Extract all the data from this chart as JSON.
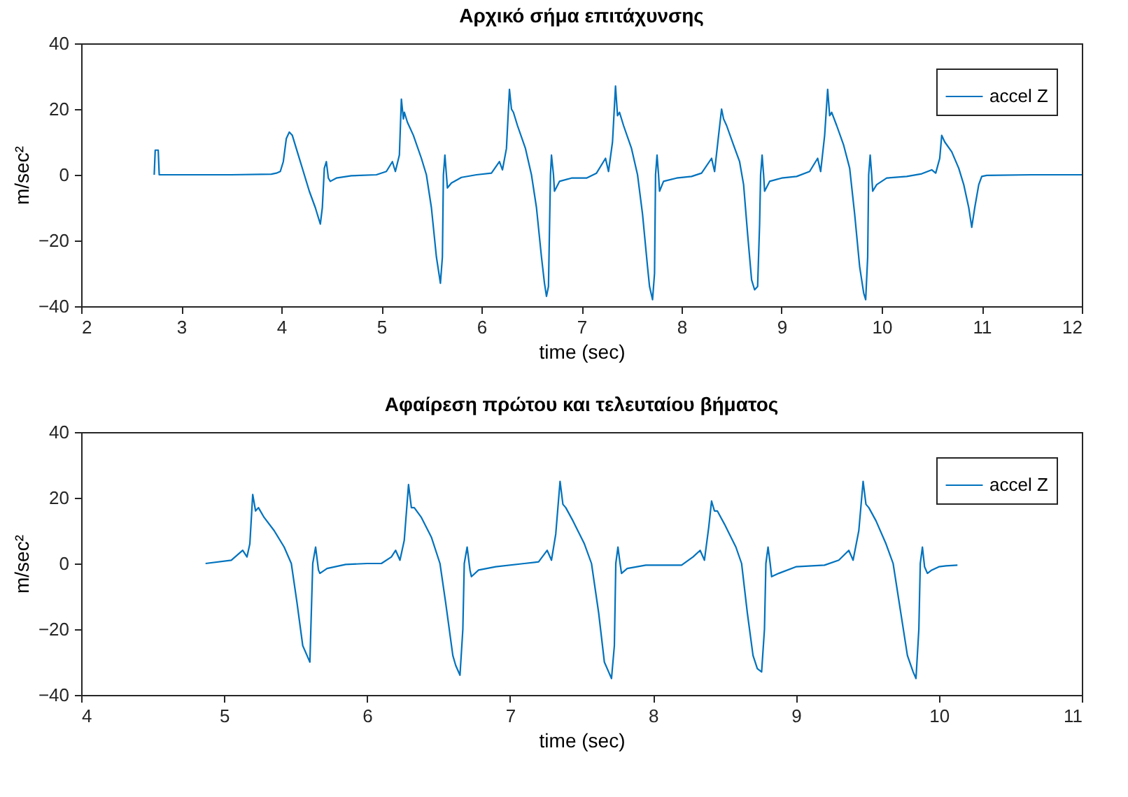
{
  "chart_data": [
    {
      "type": "line",
      "title": "Αρχικό σήμα επιτάχυνσης",
      "xlabel": "time (sec)",
      "ylabel": "m/sec²",
      "xlim": [
        2,
        12
      ],
      "ylim": [
        -40,
        40
      ],
      "xticks": [
        2,
        3,
        4,
        5,
        6,
        7,
        8,
        9,
        10,
        11,
        12
      ],
      "yticks": [
        -40,
        -20,
        0,
        20,
        40
      ],
      "legend": "top right",
      "series": [
        {
          "name": "accel Z",
          "color": "#0072bd",
          "x": [
            2.73,
            2.74,
            2.77,
            2.78,
            3.0,
            3.5,
            3.9,
            3.95,
            3.99,
            4.02,
            4.05,
            4.08,
            4.11,
            4.16,
            4.22,
            4.28,
            4.34,
            4.39,
            4.41,
            4.43,
            4.45,
            4.47,
            4.49,
            4.55,
            4.7,
            4.95,
            5.05,
            5.11,
            5.14,
            5.18,
            5.2,
            5.22,
            5.23,
            5.26,
            5.32,
            5.4,
            5.45,
            5.5,
            5.55,
            5.58,
            5.59,
            5.61,
            5.62,
            5.635,
            5.65,
            5.66,
            5.7,
            5.8,
            5.95,
            6.1,
            6.18,
            6.21,
            6.25,
            6.28,
            6.3,
            6.32,
            6.36,
            6.44,
            6.5,
            6.55,
            6.6,
            6.63,
            6.65,
            6.67,
            6.69,
            6.7,
            6.72,
            6.73,
            6.78,
            6.9,
            7.05,
            7.15,
            7.24,
            7.27,
            7.31,
            7.34,
            7.36,
            7.38,
            7.42,
            7.5,
            7.56,
            7.61,
            7.66,
            7.68,
            7.71,
            7.73,
            7.74,
            7.755,
            7.77,
            7.78,
            7.82,
            7.95,
            8.1,
            8.2,
            8.3,
            8.33,
            8.37,
            8.4,
            8.42,
            8.45,
            8.52,
            8.58,
            8.62,
            8.66,
            8.7,
            8.73,
            8.76,
            8.78,
            8.79,
            8.805,
            8.82,
            8.83,
            8.88,
            9.0,
            9.15,
            9.28,
            9.36,
            9.39,
            9.43,
            9.46,
            9.48,
            9.5,
            9.55,
            9.62,
            9.68,
            9.73,
            9.78,
            9.82,
            9.84,
            9.86,
            9.87,
            9.885,
            9.9,
            9.91,
            9.95,
            10.05,
            10.25,
            10.4,
            10.5,
            10.54,
            10.58,
            10.6,
            10.63,
            10.7,
            10.77,
            10.82,
            10.87,
            10.9,
            10.93,
            10.97,
            11.0,
            11.05,
            11.5,
            12.0
          ],
          "values": [
            0,
            7.5,
            7.5,
            0,
            0,
            0,
            0.2,
            0.5,
            1,
            4,
            11,
            13,
            12,
            7,
            1,
            -5,
            -10,
            -15,
            -10,
            2,
            4,
            -1,
            -2,
            -1,
            -0.3,
            0,
            1,
            4,
            1,
            6,
            23,
            17,
            19,
            16,
            12,
            5,
            0,
            -10,
            -25,
            -31,
            -33,
            -25,
            0,
            6,
            0,
            -4,
            -2.5,
            -0.8,
            0,
            0.5,
            4,
            1.5,
            8,
            26,
            20,
            19,
            15,
            8,
            0,
            -10,
            -25,
            -33,
            -37,
            -34,
            0,
            6,
            0,
            -5,
            -2,
            -1,
            -1,
            0.5,
            5,
            1,
            10,
            27,
            18,
            19,
            15,
            8,
            0,
            -12,
            -28,
            -34,
            -38,
            -30,
            0,
            6,
            0,
            -5,
            -2,
            -1,
            -0.5,
            0.5,
            5,
            1,
            12,
            20,
            17,
            15,
            9,
            4,
            -3,
            -18,
            -32,
            -35,
            -34,
            -15,
            0,
            6,
            0,
            -5,
            -2,
            -1,
            -0.5,
            1,
            5,
            1,
            12,
            26,
            18,
            19,
            15,
            9,
            2,
            -12,
            -28,
            -36,
            -38,
            -25,
            0,
            6,
            0,
            -5,
            -3,
            -1,
            -0.5,
            0.3,
            1.5,
            0.5,
            5,
            12,
            10,
            7,
            2,
            -3,
            -10,
            -16,
            -10,
            -3,
            -0.5,
            -0.2,
            0,
            0
          ]
        }
      ]
    },
    {
      "type": "line",
      "title": "Αφαίρεση πρώτου και τελευταίου βήματος",
      "xlabel": "time (sec)",
      "ylabel": "m/sec²",
      "xlim": [
        4,
        11
      ],
      "ylim": [
        -40,
        40
      ],
      "xticks": [
        4,
        5,
        6,
        7,
        8,
        9,
        10,
        11
      ],
      "yticks": [
        -40,
        -20,
        0,
        20,
        40
      ],
      "legend": "top right",
      "series": [
        {
          "name": "accel Z",
          "color": "#0072bd",
          "x": [
            4.87,
            5.05,
            5.13,
            5.16,
            5.18,
            5.2,
            5.22,
            5.24,
            5.28,
            5.35,
            5.42,
            5.47,
            5.51,
            5.55,
            5.58,
            5.6,
            5.61,
            5.62,
            5.64,
            5.66,
            5.67,
            5.72,
            5.85,
            6.0,
            6.1,
            6.17,
            6.2,
            6.23,
            6.26,
            6.29,
            6.31,
            6.33,
            6.38,
            6.45,
            6.51,
            6.55,
            6.6,
            6.62,
            6.65,
            6.67,
            6.68,
            6.7,
            6.72,
            6.73,
            6.78,
            6.9,
            7.1,
            7.2,
            7.26,
            7.29,
            7.32,
            7.35,
            7.37,
            7.39,
            7.44,
            7.52,
            7.57,
            7.62,
            7.66,
            7.69,
            7.71,
            7.73,
            7.74,
            7.755,
            7.77,
            7.78,
            7.82,
            7.95,
            8.2,
            8.28,
            8.33,
            8.36,
            8.39,
            8.41,
            8.43,
            8.45,
            8.5,
            8.58,
            8.62,
            8.66,
            8.7,
            8.73,
            8.76,
            8.78,
            8.79,
            8.805,
            8.82,
            8.83,
            8.88,
            9.0,
            9.2,
            9.3,
            9.37,
            9.4,
            9.44,
            9.47,
            9.49,
            9.51,
            9.56,
            9.63,
            9.68,
            9.73,
            9.78,
            9.82,
            9.84,
            9.86,
            9.87,
            9.885,
            9.9,
            9.92,
            9.95,
            10.0,
            10.05,
            10.13
          ],
          "values": [
            0,
            1,
            4,
            2,
            6,
            21,
            16,
            17,
            14,
            10,
            5,
            0,
            -12,
            -25,
            -28,
            -30,
            -15,
            0,
            5,
            -2,
            -3,
            -1.5,
            -0.3,
            0,
            0,
            2,
            4,
            1,
            7,
            24,
            17,
            17,
            14,
            8,
            0,
            -12,
            -28,
            -31,
            -34,
            -20,
            0,
            5,
            -2,
            -4,
            -2,
            -1,
            0,
            0.5,
            4,
            1,
            9,
            25,
            18,
            17,
            13,
            6,
            0,
            -15,
            -30,
            -33,
            -35,
            -25,
            0,
            5,
            0,
            -3,
            -1.5,
            -0.5,
            -0.5,
            2,
            4,
            1,
            11,
            19,
            16,
            16,
            12,
            5,
            0,
            -15,
            -28,
            -32,
            -33,
            -20,
            0,
            5,
            0,
            -4,
            -3,
            -1,
            -0.5,
            1,
            4,
            1,
            10,
            25,
            18,
            17,
            13,
            6,
            0,
            -14,
            -28,
            -33,
            -35,
            -20,
            0,
            5,
            -1,
            -3,
            -2,
            -1,
            -0.7,
            -0.5
          ]
        }
      ]
    }
  ]
}
